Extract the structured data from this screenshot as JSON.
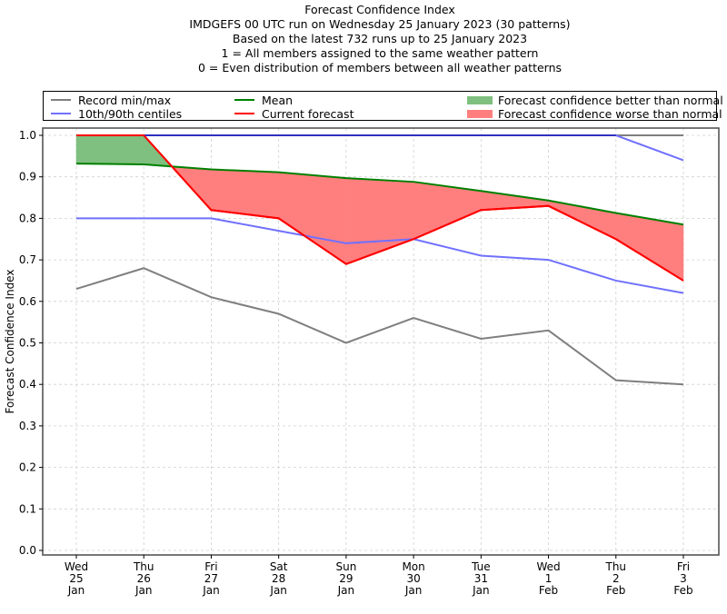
{
  "chart_data": {
    "type": "line",
    "title_lines": [
      "Forecast Confidence Index",
      "IMDGEFS 00 UTC run on Wednesday 25 January 2023 (30 patterns)",
      "Based on the latest 732 runs up to 25 January 2023",
      "1 = All members assigned to the same weather pattern",
      "0 = Even distribution of members between all weather patterns"
    ],
    "xlabel": "",
    "ylabel": "Forecast Confidence Index",
    "ylim": [
      0.0,
      1.0
    ],
    "yticks": [
      "0.0",
      "0.1",
      "0.2",
      "0.3",
      "0.4",
      "0.5",
      "0.6",
      "0.7",
      "0.8",
      "0.9",
      "1.0"
    ],
    "grid": true,
    "categories": [
      [
        "Wed",
        "25",
        "Jan"
      ],
      [
        "Thu",
        "26",
        "Jan"
      ],
      [
        "Fri",
        "27",
        "Jan"
      ],
      [
        "Sat",
        "28",
        "Jan"
      ],
      [
        "Sun",
        "29",
        "Jan"
      ],
      [
        "Mon",
        "30",
        "Jan"
      ],
      [
        "Tue",
        "31",
        "Jan"
      ],
      [
        "Wed",
        "1",
        "Feb"
      ],
      [
        "Thu",
        "2",
        "Feb"
      ],
      [
        "Fri",
        "3",
        "Feb"
      ]
    ],
    "series": [
      {
        "name": "Record max",
        "legend": "Record min/max",
        "color": "#7f7f7f",
        "values": [
          1.0,
          1.0,
          1.0,
          1.0,
          1.0,
          1.0,
          1.0,
          1.0,
          1.0,
          1.0
        ]
      },
      {
        "name": "Record min",
        "legend": "Record min/max",
        "color": "#7f7f7f",
        "values": [
          0.63,
          0.68,
          0.61,
          0.57,
          0.5,
          0.56,
          0.51,
          0.53,
          0.41,
          0.4
        ]
      },
      {
        "name": "90th centile",
        "legend": "10th/90th centiles",
        "color": "#7070ff",
        "values": [
          1.0,
          1.0,
          1.0,
          1.0,
          1.0,
          1.0,
          1.0,
          1.0,
          1.0,
          0.94
        ]
      },
      {
        "name": "10th centile",
        "legend": "10th/90th centiles",
        "color": "#7070ff",
        "values": [
          0.8,
          0.8,
          0.8,
          0.77,
          0.74,
          0.75,
          0.71,
          0.7,
          0.65,
          0.62
        ]
      },
      {
        "name": "Mean",
        "legend": "Mean",
        "color": "#008000",
        "values": [
          0.932,
          0.93,
          0.918,
          0.911,
          0.897,
          0.888,
          0.866,
          0.843,
          0.813,
          0.785
        ]
      },
      {
        "name": "Current forecast",
        "legend": "Current forecast",
        "color": "#ff0000",
        "values": [
          1.0,
          1.0,
          0.82,
          0.8,
          0.69,
          0.75,
          0.82,
          0.83,
          0.75,
          0.65
        ]
      }
    ],
    "fills": [
      {
        "name": "Forecast confidence better than normal",
        "color": "#7fbf7f",
        "between": [
          "Current forecast",
          "Mean"
        ],
        "where": "current > mean"
      },
      {
        "name": "Forecast confidence worse than normal",
        "color": "#ff7f7f",
        "between": [
          "Current forecast",
          "Mean"
        ],
        "where": "current < mean"
      }
    ],
    "legend": {
      "placement": "top (above axes, 3 columns)",
      "entries": [
        {
          "label": "Record min/max",
          "kind": "line",
          "color": "#7f7f7f"
        },
        {
          "label": "10th/90th centiles",
          "kind": "line",
          "color": "#7070ff"
        },
        {
          "label": "Mean",
          "kind": "line",
          "color": "#008000"
        },
        {
          "label": "Current forecast",
          "kind": "line",
          "color": "#ff0000"
        },
        {
          "label": "Forecast confidence better than normal",
          "kind": "patch",
          "color": "#7fbf7f"
        },
        {
          "label": "Forecast confidence worse than normal",
          "kind": "patch",
          "color": "#ff7f7f"
        }
      ]
    }
  }
}
